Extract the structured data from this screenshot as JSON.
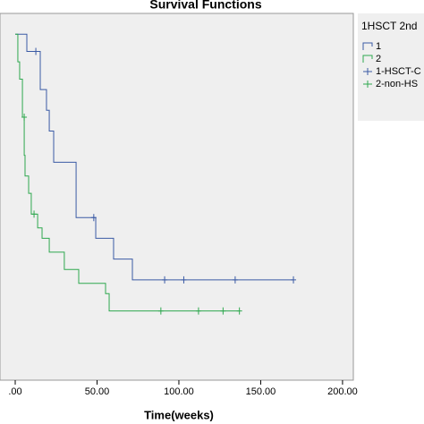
{
  "chart_data": {
    "type": "step",
    "title": "Survival Functions",
    "x_label": "Time(weeks)",
    "legend_title": "1HSCT 2nd",
    "xlim": [
      -9.3,
      206.6
    ],
    "ylim": [
      0,
      1.06
    ],
    "xticks": [
      {
        "value": 0,
        "label": ".00"
      },
      {
        "value": 50,
        "label": "50.00"
      },
      {
        "value": 100,
        "label": "100.00"
      },
      {
        "value": 150,
        "label": "150.00"
      },
      {
        "value": 200,
        "label": "200.00"
      }
    ],
    "series": [
      {
        "name": "1",
        "color": "#3b5ba5",
        "x": [
          0,
          7.1,
          15.3,
          19.1,
          20.8,
          23.5,
          37.2,
          49.2,
          60.1,
          71.6,
          170
        ],
        "values": [
          1.0,
          0.95,
          0.84,
          0.78,
          0.72,
          0.63,
          0.47,
          0.41,
          0.35,
          0.29,
          0.29
        ]
      },
      {
        "name": "2",
        "color": "#2fa84f",
        "x": [
          0,
          1.6,
          2.7,
          4.4,
          5.5,
          6,
          8.2,
          9.8,
          13.7,
          16.4,
          20.8,
          30,
          38.8,
          55.2,
          57.4,
          137
        ],
        "values": [
          1.0,
          0.92,
          0.87,
          0.76,
          0.65,
          0.59,
          0.54,
          0.48,
          0.44,
          0.41,
          0.37,
          0.32,
          0.28,
          0.25,
          0.2,
          0.2
        ]
      },
      {
        "name": "1-HSCT-C",
        "color": "#3b5ba5",
        "censored": true,
        "x": [
          12.6,
          48,
          91.3,
          103,
          134.4,
          170
        ],
        "values": [
          0.95,
          0.47,
          0.29,
          0.29,
          0.29,
          0.29
        ]
      },
      {
        "name": "2-non-HS",
        "color": "#2fa84f",
        "censored": true,
        "x": [
          5.5,
          11.5,
          89,
          112,
          127,
          137
        ],
        "values": [
          0.76,
          0.48,
          0.2,
          0.2,
          0.2,
          0.2
        ]
      }
    ]
  }
}
